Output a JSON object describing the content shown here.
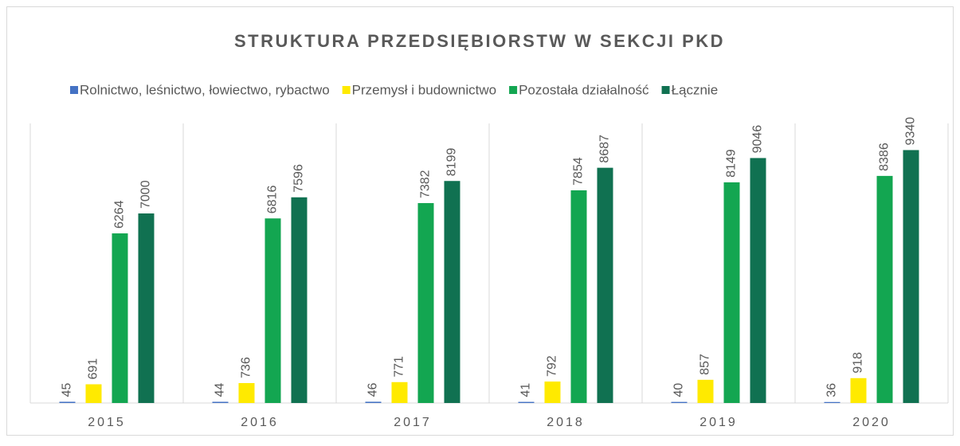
{
  "chart_data": {
    "type": "bar",
    "title": "STRUKTURA PRZEDSIĘBIORSTW W SEKCJI PKD",
    "categories": [
      "2015",
      "2016",
      "2017",
      "2018",
      "2019",
      "2020"
    ],
    "series": [
      {
        "name": "Rolnictwo, leśnictwo, łowiectwo, rybactwo",
        "color": "#4472c4",
        "values": [
          45,
          44,
          46,
          41,
          40,
          36
        ]
      },
      {
        "name": "Przemysł i budownictwo",
        "color": "#ffea00",
        "values": [
          691,
          736,
          771,
          792,
          857,
          918
        ]
      },
      {
        "name": "Pozostała działalność",
        "color": "#13a651",
        "values": [
          6264,
          6816,
          7382,
          7854,
          8149,
          8386
        ]
      },
      {
        "name": "Łącznie",
        "color": "#107151",
        "values": [
          7000,
          7596,
          8199,
          8687,
          9046,
          9340
        ]
      }
    ],
    "ylim": [
      0,
      10000
    ],
    "legend": "top"
  }
}
